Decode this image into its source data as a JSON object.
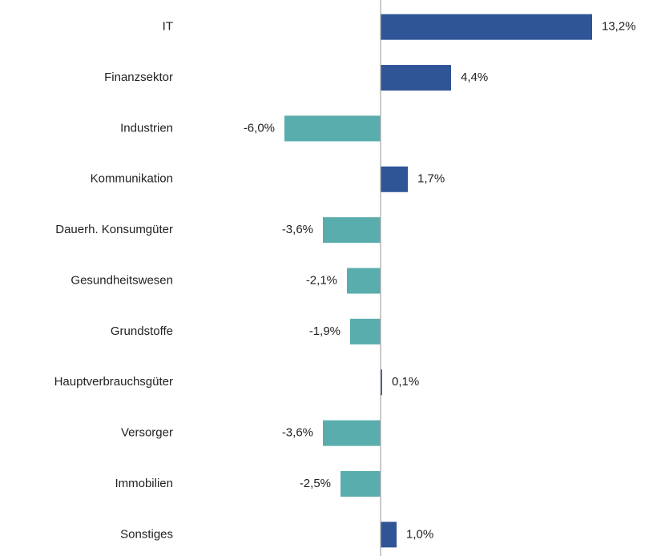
{
  "chart_data": {
    "type": "hbar",
    "categories": [
      "IT",
      "Finanzsektor",
      "Industrien",
      "Kommunikation",
      "Dauerh. Konsumgüter",
      "Gesundheitswesen",
      "Grundstoffe",
      "Hauptverbrauchsgüter",
      "Versorger",
      "Immobilien",
      "Sonstiges"
    ],
    "values": [
      13.2,
      4.4,
      -6.0,
      1.7,
      -3.6,
      -2.1,
      -1.9,
      0.1,
      -3.6,
      -2.5,
      1.0
    ],
    "value_labels": [
      "13,2%",
      "4,4%",
      "-6,0%",
      "1,7%",
      "-3,6%",
      "-2,1%",
      "-1,9%",
      "0,1%",
      "-3,6%",
      "-2,5%",
      "1,0%"
    ],
    "xlim": [
      -12.25,
      17
    ],
    "positive_color": "#2f5597",
    "negative_color": "#5aadad"
  }
}
